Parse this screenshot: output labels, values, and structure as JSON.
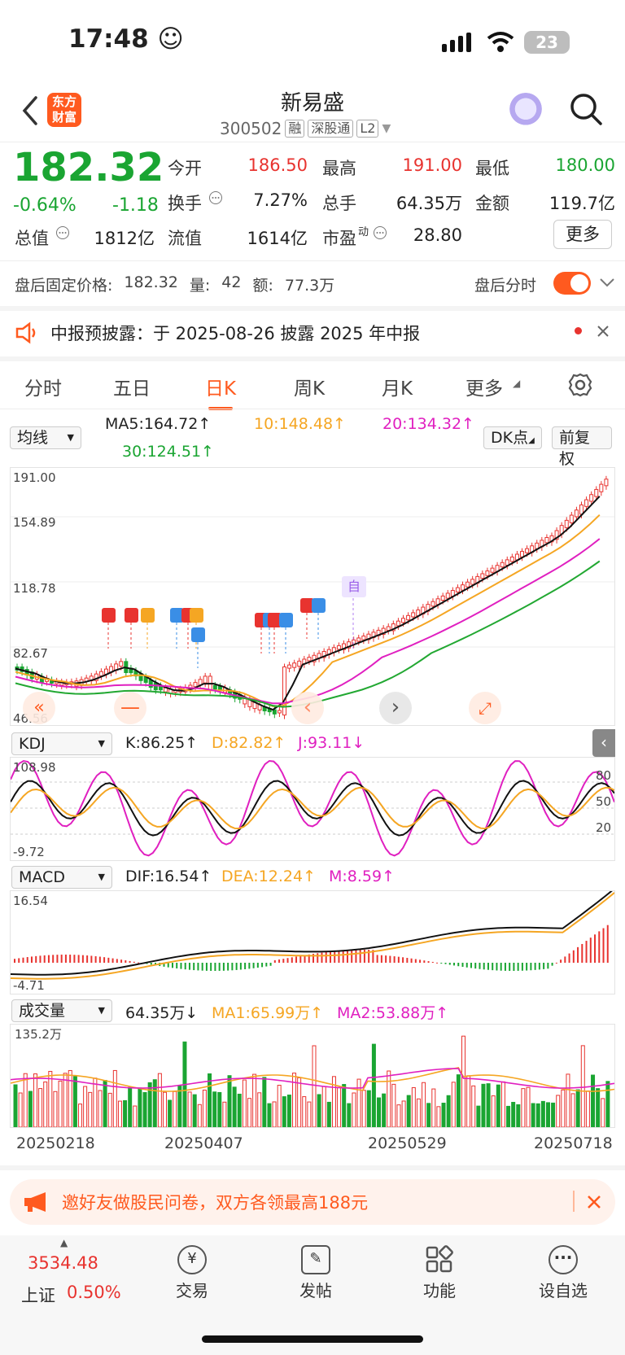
{
  "status": {
    "time": "17:48 ☺",
    "battery": "23"
  },
  "nav": {
    "logo": "东方财富",
    "title": "新易盛",
    "code": "300502",
    "tags": [
      "融",
      "深股通",
      "L2"
    ]
  },
  "quote": {
    "price": "182.32",
    "change_pct": "-0.64%",
    "change": "-1.18",
    "rows": [
      [
        {
          "l": "今开",
          "v": "186.50",
          "c": "red"
        },
        {
          "l": "最高",
          "v": "191.00",
          "c": "red"
        },
        {
          "l": "最低",
          "v": "180.00",
          "c": "green"
        }
      ],
      [
        {
          "l": "换手",
          "v": "7.27%",
          "c": "black"
        },
        {
          "l": "总手",
          "v": "64.35万",
          "c": "black"
        },
        {
          "l": "金额",
          "v": "119.7亿",
          "c": "black"
        }
      ]
    ],
    "row3": {
      "l1": "总值",
      "v1": "1812亿",
      "l2": "流值",
      "v2": "1614亿",
      "l3": "市盈",
      "v3": "28.80",
      "sup": "动"
    },
    "more": "更多"
  },
  "after_hours": {
    "label": "盘后固定价格:",
    "price": "182.32",
    "vol_label": "量:",
    "vol": "42",
    "amt_label": "额:",
    "amt": "77.3万",
    "right_label": "盘后分时"
  },
  "notice": {
    "text": "中报预披露：于 2025-08-26 披露 2025 年中报"
  },
  "tabs": [
    "分时",
    "五日",
    "日K",
    "周K",
    "月K",
    "更多"
  ],
  "ma": {
    "selector": "均线",
    "ma5": "MA5:164.72↑",
    "ma10": "10:148.48↑",
    "ma20": "20:134.32↑",
    "ma30": "30:124.51↑",
    "dk": "DK点",
    "adjust": "前复权"
  },
  "main_axis": [
    "191.00",
    "154.89",
    "118.78",
    "82.67",
    "46.56"
  ],
  "kdj": {
    "selector": "KDJ",
    "k": "K:86.25↑",
    "d": "D:82.82↑",
    "j": "J:93.11↓",
    "axis": [
      "108.98",
      "-9.72"
    ],
    "levels": [
      "80",
      "50",
      "20"
    ]
  },
  "macd": {
    "selector": "MACD",
    "dif": "DIF:16.54↑",
    "dea": "DEA:12.24↑",
    "m": "M:8.59↑",
    "axis": [
      "16.54",
      "-4.71"
    ]
  },
  "volume": {
    "selector": "成交量",
    "v": "64.35万↓",
    "ma1": "MA1:65.99万↑",
    "ma2": "MA2:53.88万↑",
    "axis": "135.2万"
  },
  "dates": [
    "20250218",
    "20250407",
    "20250529",
    "20250718"
  ],
  "marker": "自",
  "banner": {
    "text": "邀好友做股民问卷，双方各领最高188元"
  },
  "bottom": {
    "index_val": "3534.48",
    "index_name": "上证",
    "index_pct": "0.50%",
    "items": [
      "交易",
      "发帖",
      "功能",
      "设自选"
    ]
  },
  "colors": {
    "up": "#e8332f",
    "down": "#1aa532",
    "accent": "#ff5a1f",
    "ma10": "#f5a623",
    "ma20": "#e020c0"
  }
}
